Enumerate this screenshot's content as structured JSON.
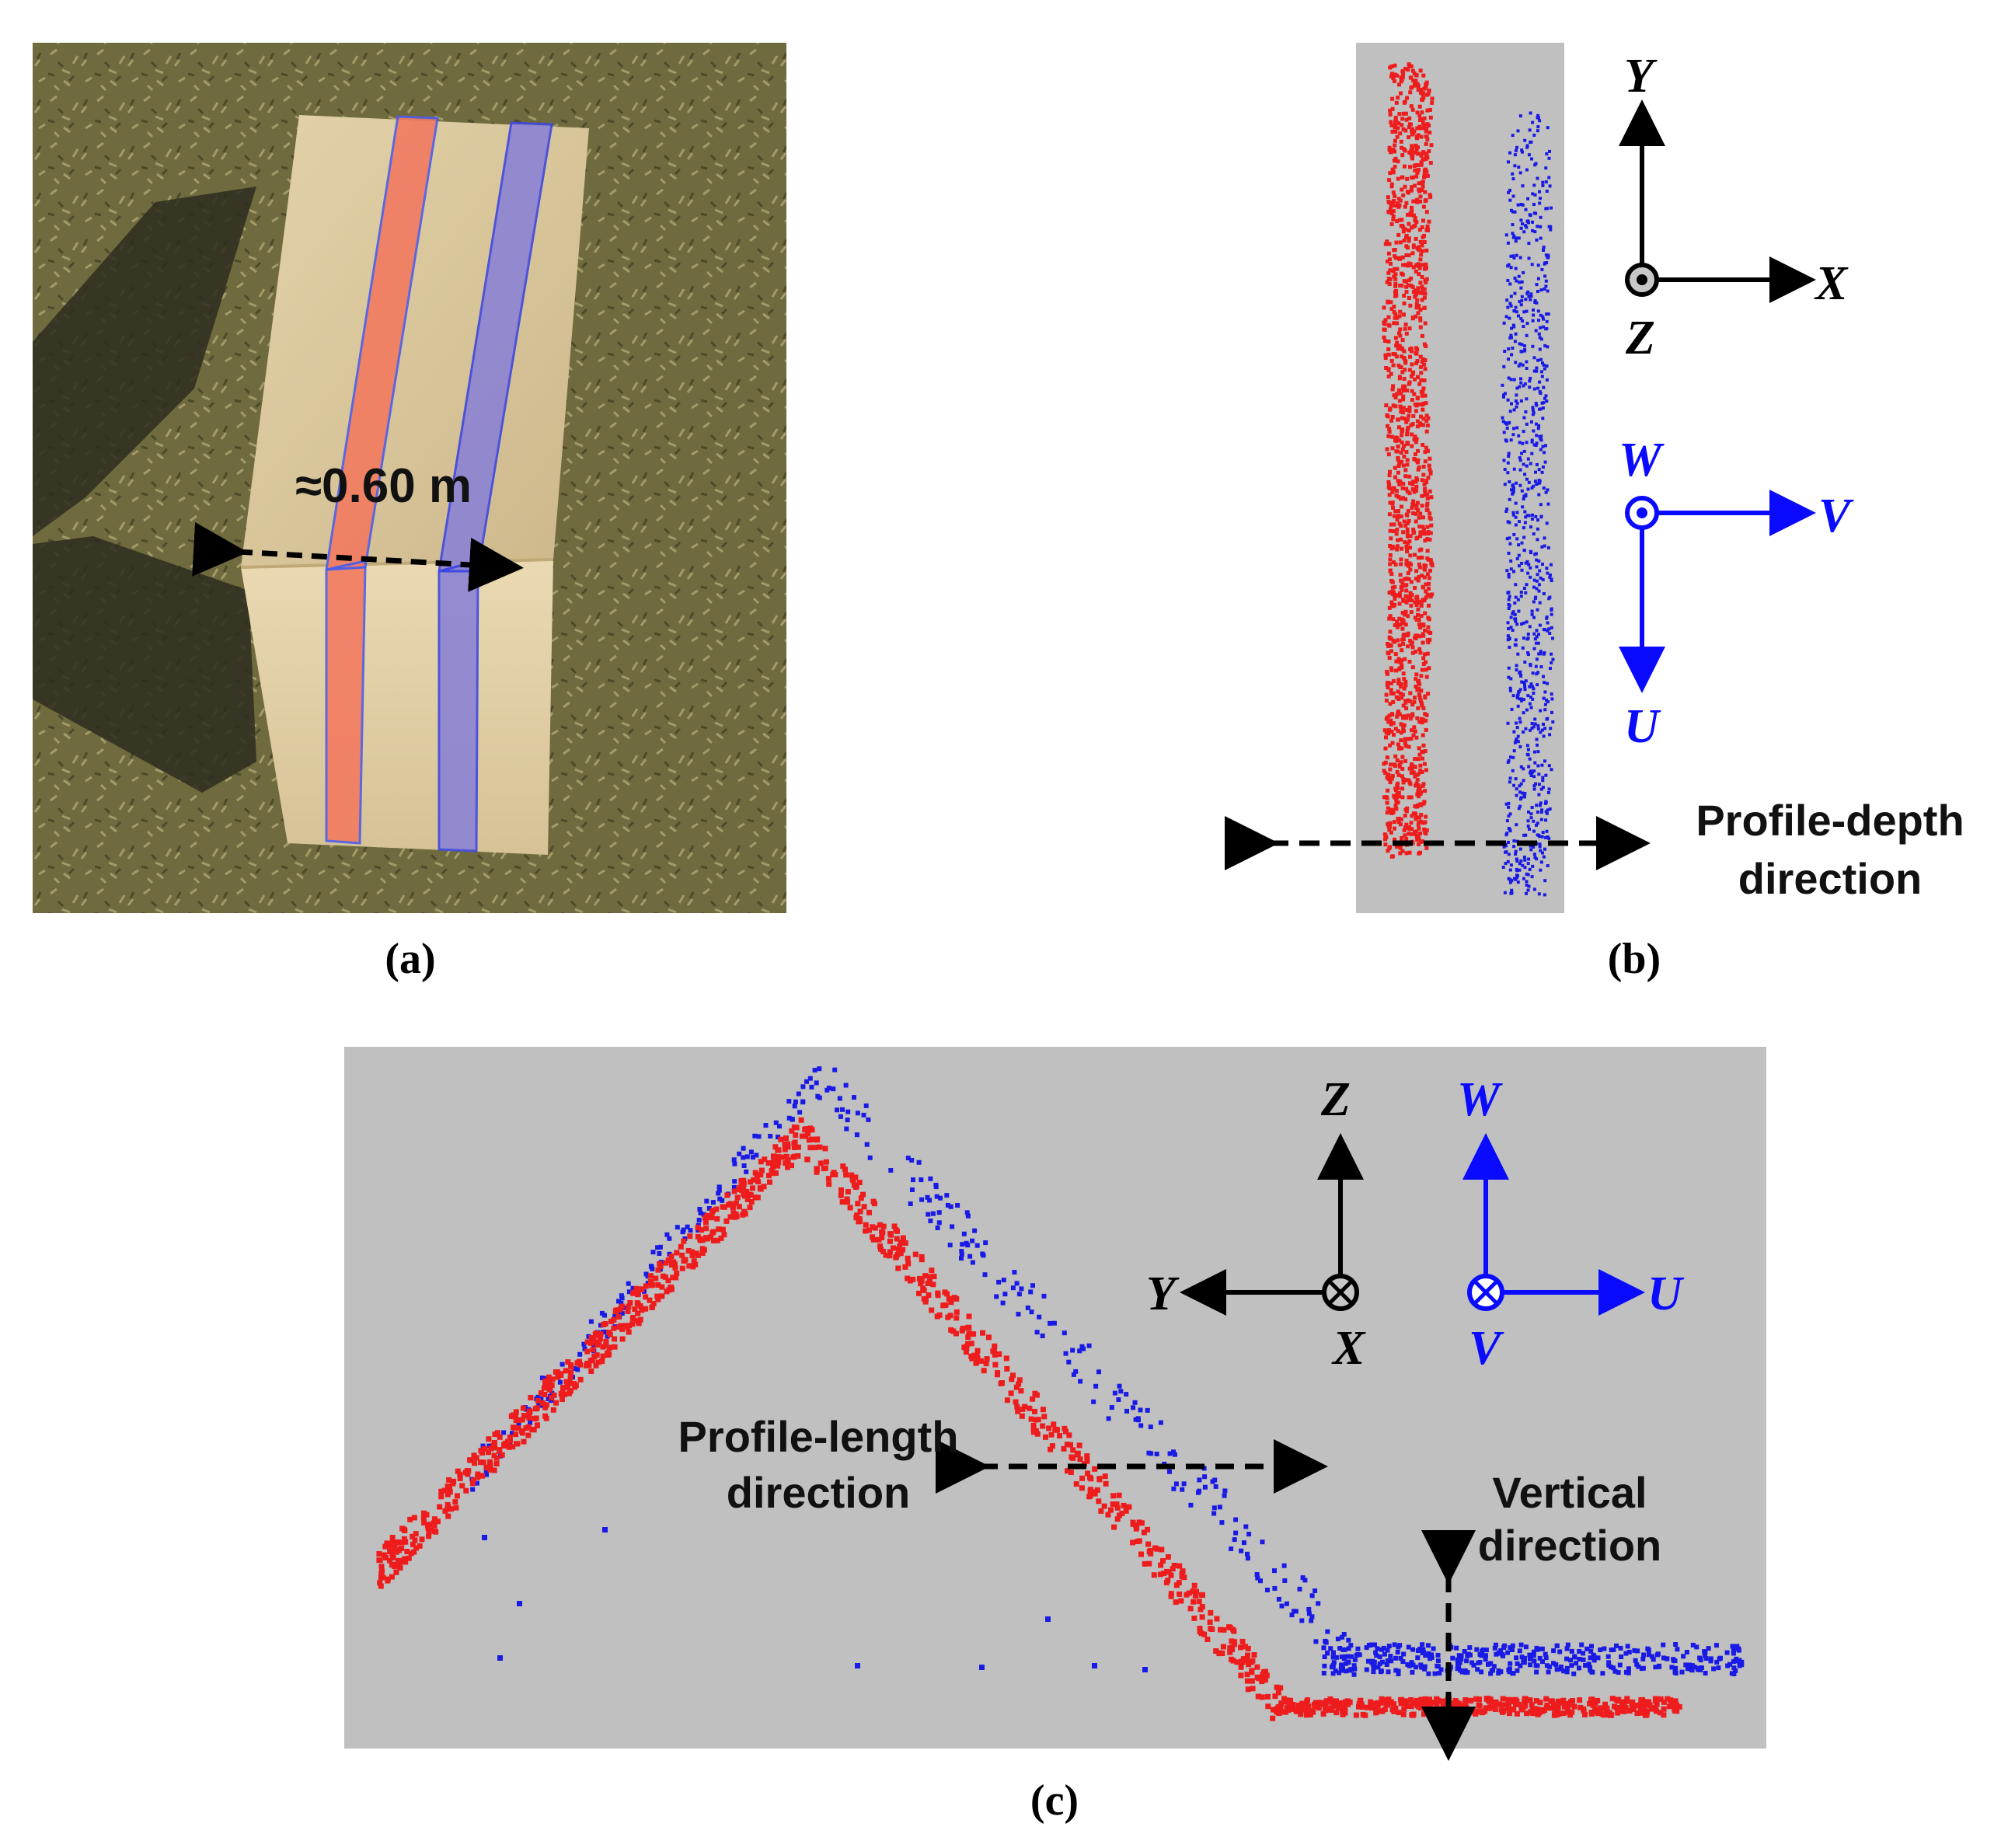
{
  "figure": {
    "panel_a": {
      "caption": "(a)",
      "width_label": "≈0.60 m"
    },
    "panel_b": {
      "caption": "(b)",
      "axes_xyz": {
        "y": "Y",
        "x": "X",
        "z": "Z"
      },
      "axes_uvw": {
        "w": "W",
        "v": "V",
        "u": "U"
      },
      "direction_label_line1": "Profile-depth",
      "direction_label_line2": "direction"
    },
    "panel_c": {
      "caption": "(c)",
      "axes_xyz": {
        "z": "Z",
        "y": "Y",
        "x": "X"
      },
      "axes_uvw": {
        "w": "W",
        "u": "U",
        "v": "V"
      },
      "length_label_line1": "Profile-length",
      "length_label_line2": "direction",
      "vertical_label_line1": "Vertical",
      "vertical_label_line2": "direction"
    },
    "colors": {
      "red_points": "#ee1c1c",
      "blue_points": "#1a1ae6",
      "panel_bg": "#c0c0c0",
      "axis_black": "#000000",
      "axis_blue": "#0a0aff",
      "grass": "#6e6b3c",
      "board": "#d9c59a"
    }
  }
}
